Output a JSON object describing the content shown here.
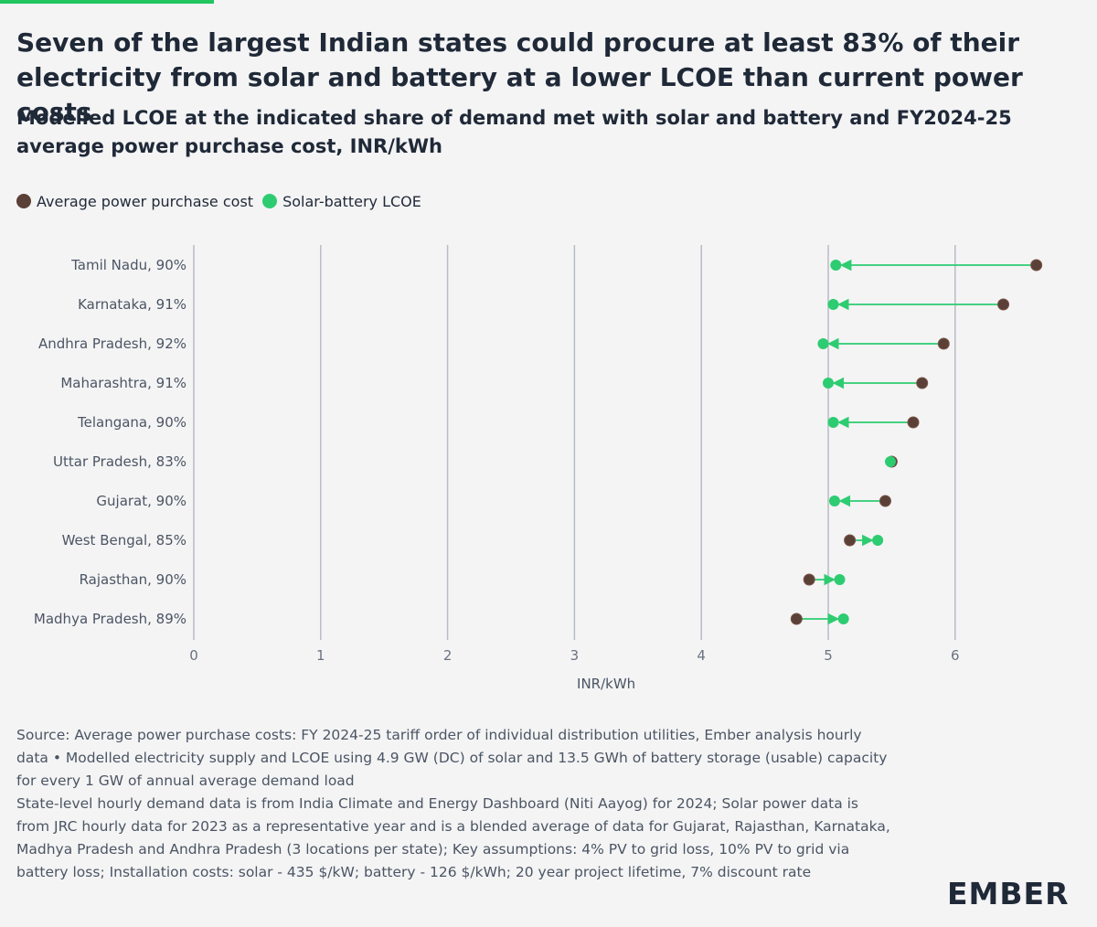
{
  "header": {
    "title": "Seven of the largest Indian states could procure at least 83% of their electricity from solar and battery at a lower LCOE than current power costs",
    "subtitle": "Modelled LCOE at the indicated share of demand met with solar and battery and FY2024-25 average power purchase cost, INR/kWh"
  },
  "legend": {
    "items": [
      {
        "label": "Average power purchase cost",
        "color": "#5b4037"
      },
      {
        "label": "Solar-battery LCOE",
        "color": "#2ecc71"
      }
    ]
  },
  "chart_data": {
    "type": "dumbbell",
    "xlabel": "INR/kWh",
    "xlim": [
      0,
      6.5
    ],
    "xticks": [
      "0",
      "1",
      "2",
      "3",
      "4",
      "5",
      "6"
    ],
    "grid": true,
    "categories": [
      "Tamil Nadu, 90%",
      "Karnataka, 91%",
      "Andhra Pradesh, 92%",
      "Maharashtra, 91%",
      "Telangana, 90%",
      "Uttar Pradesh, 83%",
      "Gujarat, 90%",
      "West Bengal, 85%",
      "Rajasthan, 90%",
      "Madhya Pradesh, 89%"
    ],
    "series": [
      {
        "name": "Average power purchase cost",
        "color": "#5b4037",
        "values": [
          6.64,
          6.38,
          5.91,
          5.74,
          5.67,
          5.5,
          5.45,
          5.17,
          4.85,
          4.75
        ]
      },
      {
        "name": "Solar-battery LCOE",
        "color": "#2ecc71",
        "values": [
          5.06,
          5.04,
          4.96,
          5.0,
          5.04,
          5.49,
          5.05,
          5.39,
          5.09,
          5.12
        ]
      }
    ],
    "connector_color": "#2ecc71"
  },
  "source": {
    "line1": "Source: Average power purchase costs: FY 2024-25 tariff order of individual distribution utilities, Ember analysis hourly data • Modelled electricity supply and LCOE using 4.9 GW (DC) of solar and 13.5 GWh of battery storage (usable) capacity for every 1 GW of annual average demand load",
    "line2": "State-level hourly demand data is from India Climate and Energy Dashboard (Niti Aayog) for 2024; Solar power data is from JRC hourly data for 2023 as a representative year and is a blended average of data for Gujarat, Rajasthan, Karnataka, Madhya Pradesh and Andhra Pradesh (3 locations per state); Key assumptions: 4% PV to grid loss, 10% PV to grid via battery loss; Installation costs: solar - 435 $/kW; battery - 126 $/kWh; 20 year project lifetime, 7% discount rate"
  },
  "brand": {
    "logo": "EMBER",
    "accent": "#22c55e"
  }
}
